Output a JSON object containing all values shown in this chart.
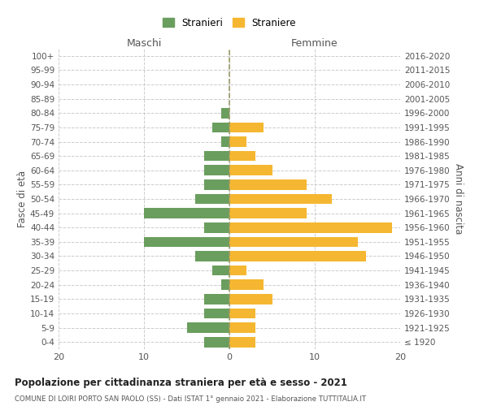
{
  "age_groups": [
    "100+",
    "95-99",
    "90-94",
    "85-89",
    "80-84",
    "75-79",
    "70-74",
    "65-69",
    "60-64",
    "55-59",
    "50-54",
    "45-49",
    "40-44",
    "35-39",
    "30-34",
    "25-29",
    "20-24",
    "15-19",
    "10-14",
    "5-9",
    "0-4"
  ],
  "birth_years": [
    "≤ 1920",
    "1921-1925",
    "1926-1930",
    "1931-1935",
    "1936-1940",
    "1941-1945",
    "1946-1950",
    "1951-1955",
    "1956-1960",
    "1961-1965",
    "1966-1970",
    "1971-1975",
    "1976-1980",
    "1981-1985",
    "1986-1990",
    "1991-1995",
    "1996-2000",
    "2001-2005",
    "2006-2010",
    "2011-2015",
    "2016-2020"
  ],
  "males": [
    0,
    0,
    0,
    0,
    1,
    2,
    1,
    3,
    3,
    3,
    4,
    10,
    3,
    10,
    4,
    2,
    1,
    3,
    3,
    5,
    3
  ],
  "females": [
    0,
    0,
    0,
    0,
    0,
    4,
    2,
    3,
    5,
    9,
    12,
    9,
    19,
    15,
    16,
    2,
    4,
    5,
    3,
    3,
    3
  ],
  "color_males": "#6a9e5e",
  "color_females": "#f5b731",
  "title_main": "Popolazione per cittadinanza straniera per età e sesso - 2021",
  "title_sub": "COMUNE DI LOIRI PORTO SAN PAOLO (SS) - Dati ISTAT 1° gennaio 2021 - Elaborazione TUTTITALIA.IT",
  "label_maschi": "Maschi",
  "label_femmine": "Femmine",
  "ylabel_left": "Fasce di età",
  "ylabel_right": "Anni di nascita",
  "legend_males": "Stranieri",
  "legend_females": "Straniere",
  "xlim": 20,
  "background_color": "#ffffff",
  "grid_color": "#cccccc"
}
